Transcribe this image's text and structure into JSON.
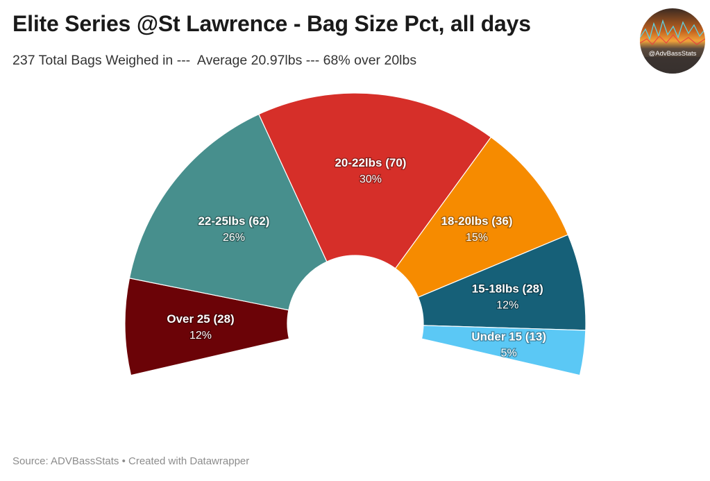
{
  "header": {
    "title": "Elite Series @St Lawrence - Bag Size Pct, all days",
    "subtitle": "237 Total Bags Weighed in ---  Average 20.97lbs --- 68% over 20lbs"
  },
  "logo": {
    "text": "@AdvBassStats",
    "icon": "sunset-stats-logo"
  },
  "footer": {
    "source": "Source: ADVBassStats • Created with Datawrapper"
  },
  "chart_data": {
    "type": "pie",
    "variant": "half-donut",
    "title": "Elite Series @St Lawrence - Bag Size Pct, all days",
    "subtitle": "237 Total Bags Weighed in ---  Average 20.97lbs --- 68% over 20lbs",
    "total": 237,
    "slices": [
      {
        "label": "Over 25 (28)",
        "value": 28,
        "pct": "12%",
        "color": "#6b0307"
      },
      {
        "label": "22-25lbs (62)",
        "value": 62,
        "pct": "26%",
        "color": "#478f8d"
      },
      {
        "label": "20-22lbs (70)",
        "value": 70,
        "pct": "30%",
        "color": "#d62f29"
      },
      {
        "label": "18-20lbs (36)",
        "value": 36,
        "pct": "15%",
        "color": "#f68b00"
      },
      {
        "label": "15-18lbs (28)",
        "value": 28,
        "pct": "12%",
        "color": "#166078"
      },
      {
        "label": "Under 15 (13)",
        "value": 13,
        "pct": "5%",
        "color": "#5bc8f5"
      }
    ]
  }
}
